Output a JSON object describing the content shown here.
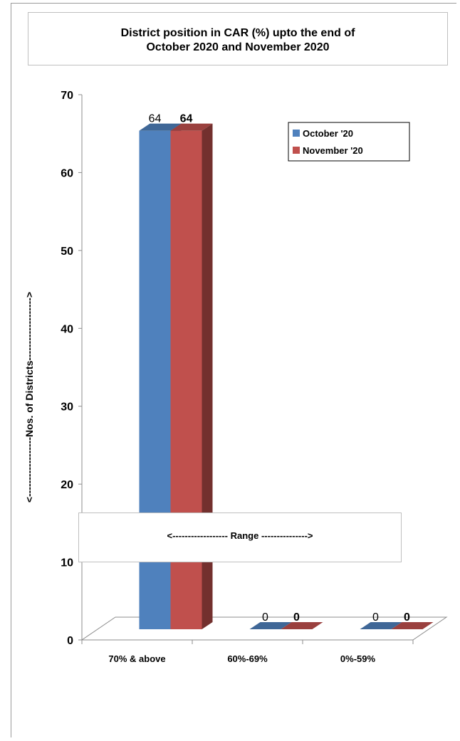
{
  "chart_data": {
    "type": "bar",
    "title_line1": "District position in CAR (%) upto the end of",
    "title_line2": "October 2020 and November 2020",
    "xlabel": "<------------------ Range --------------->",
    "ylabel": "<------------------Nos. of Districts------------------->",
    "categories": [
      "70% & above",
      "60%-69%",
      "0%-59%"
    ],
    "series": [
      {
        "name": "October '20",
        "values": [
          64,
          0,
          0
        ],
        "color": "#4f81bd"
      },
      {
        "name": "November '20",
        "values": [
          64,
          0,
          0
        ],
        "color": "#c0504d"
      }
    ],
    "ylim": [
      0,
      70
    ],
    "yticks": [
      0,
      10,
      20,
      30,
      40,
      50,
      60,
      70
    ],
    "grid": false,
    "legend_position": "top-right"
  }
}
